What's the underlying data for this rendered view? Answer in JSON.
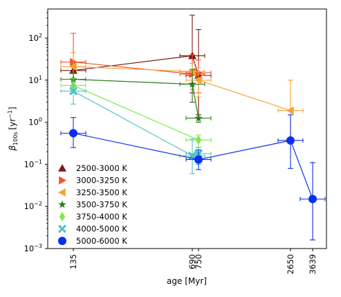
{
  "chart_data": {
    "type": "scatter",
    "xlabel": "age [Myr]",
    "ylabel_main": "β",
    "ylabel_sub": "100s",
    "ylabel_unit": "[yr",
    "ylabel_exp": "−1",
    "ylabel_close": "]",
    "y_scale": "log",
    "ylim": [
      0.001,
      500
    ],
    "y_ticks": [
      {
        "value": 0.001,
        "base": "10",
        "exp": "−3"
      },
      {
        "value": 0.01,
        "base": "10",
        "exp": "−2"
      },
      {
        "value": 0.1,
        "base": "10",
        "exp": "−1"
      },
      {
        "value": 1,
        "base": "10",
        "exp": "0"
      },
      {
        "value": 10,
        "base": "10",
        "exp": "1"
      },
      {
        "value": 100,
        "base": "10",
        "exp": "2"
      }
    ],
    "x_ticks": [
      "135",
      "690",
      "750",
      "2650",
      "3639"
    ],
    "legend_position": "lower-left",
    "series": [
      {
        "name": "2500-3000 K",
        "color": "#7a1a12",
        "marker": "triangle-up",
        "points": [
          {
            "x": "135",
            "y": 17,
            "ylo": 17,
            "yhi": 17
          },
          {
            "x": "690",
            "y": 38,
            "ylo": 5,
            "yhi": 350
          },
          {
            "x": "750",
            "y": 13,
            "ylo": 1.5,
            "yhi": 160
          }
        ]
      },
      {
        "name": "3000-3250 K",
        "color": "#f0552a",
        "marker": "triangle-right",
        "points": [
          {
            "x": "135",
            "y": 27,
            "ylo": 6,
            "yhi": 130
          },
          {
            "x": "690",
            "y": 14,
            "ylo": 3,
            "yhi": 40
          },
          {
            "x": "750",
            "y": 15,
            "ylo": 5,
            "yhi": 30
          }
        ]
      },
      {
        "name": "3250-3500 K",
        "color": "#f5a43a",
        "marker": "triangle-left",
        "points": [
          {
            "x": "135",
            "y": 21,
            "ylo": 10,
            "yhi": 45
          },
          {
            "x": "690",
            "y": 16,
            "ylo": 6,
            "yhi": 25
          },
          {
            "x": "750",
            "y": 10,
            "ylo": 4,
            "yhi": 20
          },
          {
            "x": "2650",
            "y": 1.9,
            "ylo": 0.4,
            "yhi": 10
          }
        ]
      },
      {
        "name": "3500-3750 K",
        "color": "#2f7a1e",
        "marker": "star",
        "points": [
          {
            "x": "135",
            "y": 10.5,
            "ylo": 7,
            "yhi": 15
          },
          {
            "x": "690",
            "y": 8,
            "ylo": 3,
            "yhi": 18
          },
          {
            "x": "750",
            "y": 1.25,
            "ylo": 1.0,
            "yhi": 1.5
          }
        ]
      },
      {
        "name": "3750-4000 K",
        "color": "#7ee84a",
        "marker": "diamond",
        "points": [
          {
            "x": "135",
            "y": 7.5,
            "ylo": 5,
            "yhi": 11
          },
          {
            "x": "750",
            "y": 0.38,
            "ylo": 0.25,
            "yhi": 0.5
          }
        ]
      },
      {
        "name": "4000-5000 K",
        "color": "#4fc3c3",
        "marker": "x",
        "points": [
          {
            "x": "135",
            "y": 5.5,
            "ylo": 2.7,
            "yhi": 9
          },
          {
            "x": "690",
            "y": 0.16,
            "ylo": 0.06,
            "yhi": 0.4
          },
          {
            "x": "750",
            "y": 0.18,
            "ylo": 0.1,
            "yhi": 0.25
          }
        ]
      },
      {
        "name": "5000-6000 K",
        "color": "#0a2ff0",
        "marker": "circle",
        "points": [
          {
            "x": "135",
            "y": 0.55,
            "ylo": 0.25,
            "yhi": 1.3
          },
          {
            "x": "750",
            "y": 0.13,
            "ylo": 0.075,
            "yhi": 0.22
          },
          {
            "x": "2650",
            "y": 0.37,
            "ylo": 0.08,
            "yhi": 1.5
          },
          {
            "x": "3639",
            "y": 0.015,
            "ylo": 0.0016,
            "yhi": 0.11
          }
        ]
      }
    ]
  }
}
